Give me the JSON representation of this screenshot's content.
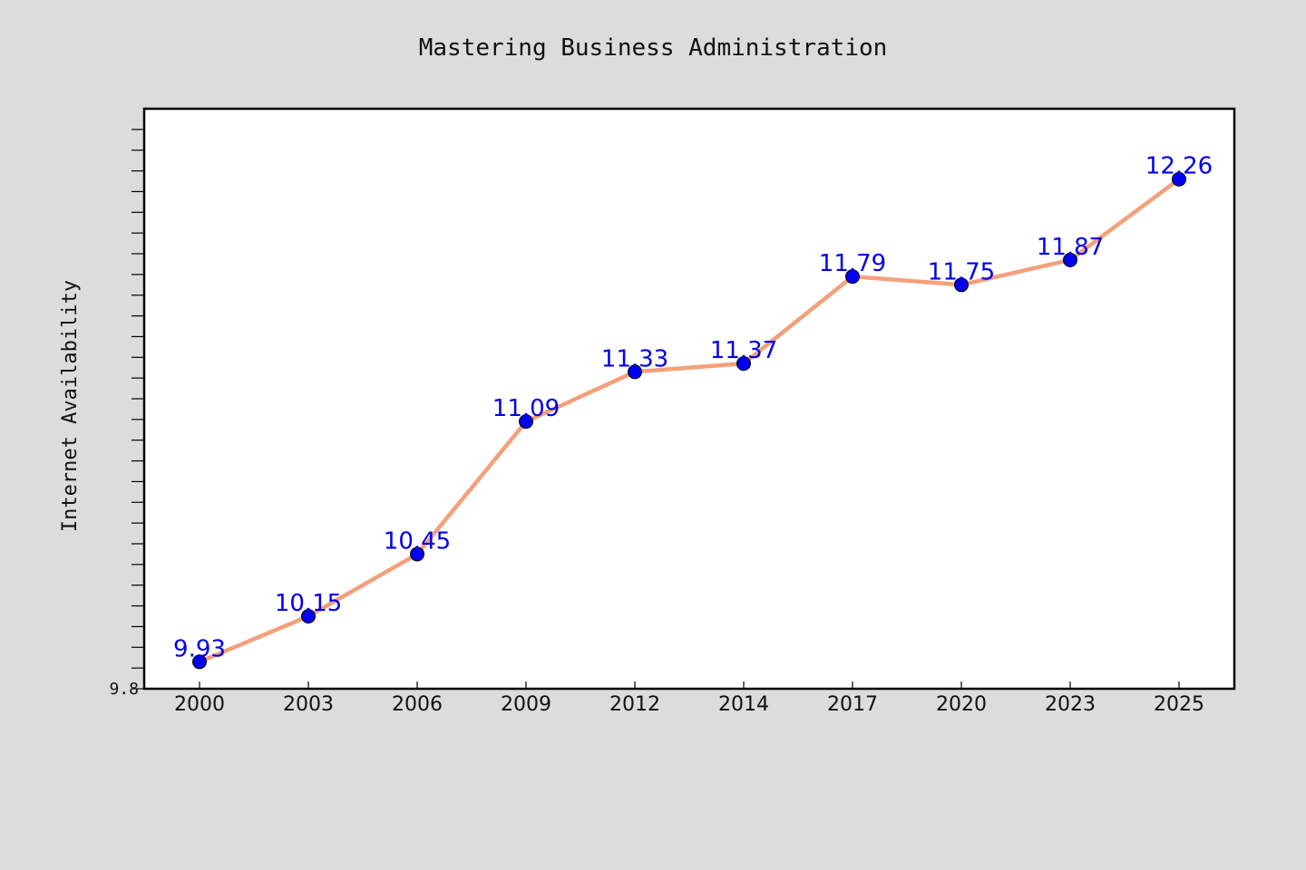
{
  "chart_data": {
    "type": "line",
    "title": "Mastering Business Administration",
    "xlabel": "",
    "ylabel": "Internet Availability",
    "categories": [
      "2000",
      "2003",
      "2006",
      "2009",
      "2012",
      "2014",
      "2017",
      "2020",
      "2023",
      "2025"
    ],
    "series": [
      {
        "values": [
          9.93,
          10.15,
          10.45,
          11.09,
          11.33,
          11.37,
          11.79,
          11.75,
          11.87,
          12.26
        ]
      }
    ],
    "y_tick_labels": [
      "9.8"
    ],
    "ylim": [
      9.8,
      12.6
    ],
    "grid": false,
    "legend": "none",
    "colors": {
      "background": "#dcdcdc",
      "plot_area": "#ffffff",
      "line": "#f4a07a",
      "marker": "#0000ee",
      "data_label": "#0000ee"
    }
  }
}
